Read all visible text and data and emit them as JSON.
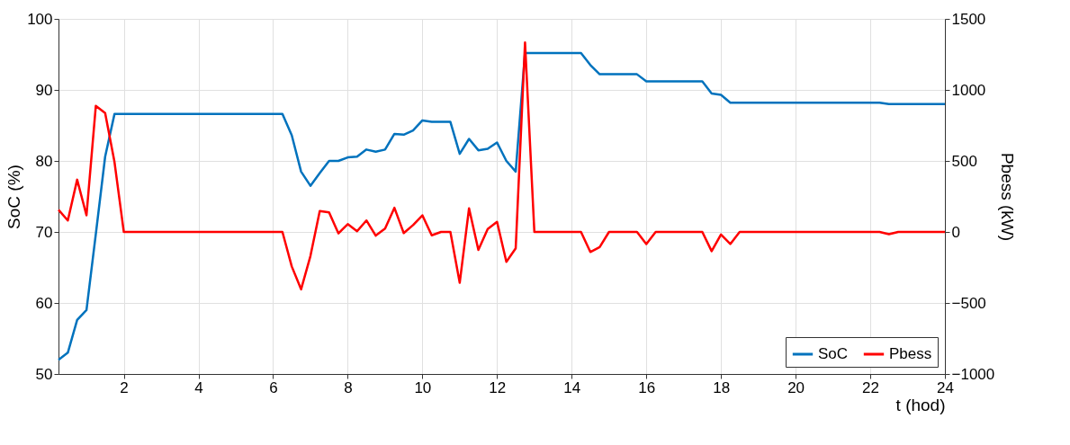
{
  "chart_data": {
    "type": "line",
    "xlabel": "t (hod)",
    "ylabel": "SoC (%)",
    "y2label": "Pbess (kW)",
    "x": [
      0.25,
      0.5,
      0.75,
      1,
      1.25,
      1.5,
      1.75,
      2,
      2.25,
      2.5,
      2.75,
      3,
      3.25,
      3.5,
      3.75,
      4,
      4.25,
      4.5,
      4.75,
      5,
      5.25,
      5.5,
      5.75,
      6,
      6.25,
      6.5,
      6.75,
      7,
      7.25,
      7.5,
      7.75,
      8,
      8.25,
      8.5,
      8.75,
      9,
      9.25,
      9.5,
      9.75,
      10,
      10.25,
      10.5,
      10.75,
      11,
      11.25,
      11.5,
      11.75,
      12,
      12.25,
      12.5,
      12.75,
      13,
      13.25,
      13.5,
      13.75,
      14,
      14.25,
      14.5,
      14.75,
      15,
      15.25,
      15.5,
      15.75,
      16,
      16.25,
      16.5,
      16.75,
      17,
      17.25,
      17.5,
      17.75,
      18,
      18.25,
      18.5,
      18.75,
      19,
      19.25,
      19.5,
      19.75,
      20,
      20.25,
      20.5,
      20.75,
      21,
      21.25,
      21.5,
      21.75,
      22,
      22.25,
      22.5,
      22.75,
      23,
      23.25,
      23.5,
      23.75,
      24
    ],
    "series": [
      {
        "name": "SoC",
        "color": "#0072bd",
        "values": [
          52,
          53,
          57.6,
          59,
          69.7,
          80.6,
          86.6,
          86.6,
          86.6,
          86.6,
          86.6,
          86.6,
          86.6,
          86.6,
          86.6,
          86.6,
          86.6,
          86.6,
          86.6,
          86.6,
          86.6,
          86.6,
          86.6,
          86.6,
          86.6,
          83.6,
          78.5,
          76.5,
          78.3,
          80.0,
          80.0,
          80.5,
          80.6,
          81.6,
          81.3,
          81.6,
          83.8,
          83.7,
          84.3,
          85.7,
          85.5,
          85.5,
          85.5,
          81.0,
          83.1,
          81.5,
          81.7,
          82.6,
          80.0,
          78.5,
          95.2,
          95.2,
          95.2,
          95.2,
          95.2,
          95.2,
          95.2,
          93.5,
          92.2,
          92.2,
          92.2,
          92.2,
          92.2,
          91.2,
          91.2,
          91.2,
          91.2,
          91.2,
          91.2,
          91.2,
          89.5,
          89.3,
          88.2,
          88.2,
          88.2,
          88.2,
          88.2,
          88.2,
          88.2,
          88.2,
          88.2,
          88.2,
          88.2,
          88.2,
          88.2,
          88.2,
          88.2,
          88.2,
          88.2,
          88.0,
          88.0,
          88.0,
          88.0,
          88.0,
          88.0,
          88.0
        ]
      },
      {
        "name": "Pbess",
        "color": "#ff0000",
        "axis": "y2",
        "values": [
          156,
          81,
          368,
          117,
          887,
          837,
          493,
          0,
          0,
          0,
          0,
          0,
          0,
          0,
          0,
          0,
          0,
          0,
          0,
          0,
          0,
          0,
          0,
          0,
          0,
          -243,
          -404,
          -170,
          147,
          137,
          -10,
          55,
          5,
          81,
          -26,
          24,
          170,
          -8,
          48,
          117,
          -24,
          0,
          0,
          -358,
          166,
          -127,
          20,
          71,
          -210,
          -115,
          1334,
          0,
          0,
          0,
          0,
          0,
          0,
          -141,
          -107,
          0,
          0,
          0,
          0,
          -85,
          0,
          0,
          0,
          0,
          0,
          0,
          -135,
          -18,
          -85,
          0,
          0,
          0,
          0,
          0,
          0,
          0,
          0,
          0,
          0,
          0,
          0,
          0,
          0,
          0,
          0,
          -16,
          0,
          0,
          0,
          0,
          0,
          0
        ]
      }
    ],
    "xlim": [
      0.25,
      24
    ],
    "xticks": [
      2,
      4,
      6,
      8,
      10,
      12,
      14,
      16,
      18,
      20,
      22,
      24
    ],
    "ylim": [
      50,
      100
    ],
    "yticks": [
      50,
      60,
      70,
      80,
      90,
      100
    ],
    "y2lim": [
      -1000,
      1500
    ],
    "y2ticks": [
      -1000,
      -500,
      0,
      500,
      1000,
      1500
    ],
    "grid": true,
    "legend": "bottom right",
    "line_style": "solid",
    "marker": "none"
  }
}
